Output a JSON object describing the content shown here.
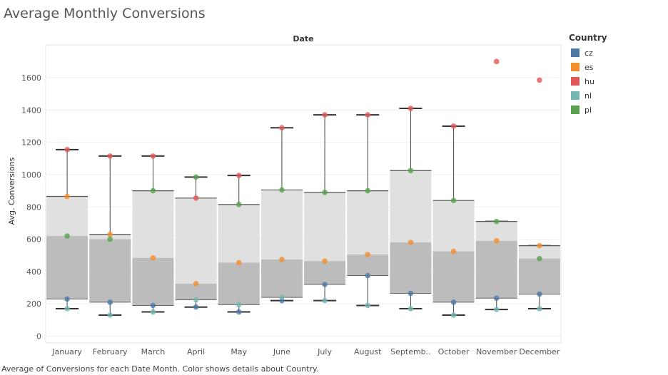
{
  "title": "Average Monthly Conversions",
  "caption": "Average of Conversions for each Date Month.  Color shows details about Country.",
  "legend": {
    "title": "Country",
    "items": [
      {
        "label": "cz",
        "color": "#4e79a7"
      },
      {
        "label": "es",
        "color": "#f28e2b"
      },
      {
        "label": "hu",
        "color": "#e15759"
      },
      {
        "label": "nl",
        "color": "#76b7b2"
      },
      {
        "label": "pl",
        "color": "#59a14f"
      }
    ]
  },
  "chart_data": {
    "type": "box",
    "title": "Average Monthly Conversions",
    "column_header": "Date",
    "ylabel": "Avg. Conversions",
    "ylim": [
      0,
      1800
    ],
    "yticks": [
      0,
      200,
      400,
      600,
      800,
      1000,
      1200,
      1400,
      1600
    ],
    "grid": true,
    "legend_position": "right",
    "categories": [
      "January",
      "February",
      "March",
      "April",
      "May",
      "June",
      "July",
      "August",
      "Septemb..",
      "October",
      "November",
      "December"
    ],
    "series": [
      {
        "name": "cz",
        "color": "#4e79a7",
        "values": [
          230,
          210,
          190,
          180,
          150,
          220,
          320,
          375,
          265,
          210,
          235,
          260
        ]
      },
      {
        "name": "es",
        "color": "#f28e2b",
        "values": [
          865,
          630,
          485,
          325,
          455,
          475,
          465,
          505,
          580,
          525,
          590,
          560
        ]
      },
      {
        "name": "hu",
        "color": "#e15759",
        "values": [
          1155,
          1115,
          1115,
          855,
          995,
          1290,
          1370,
          1370,
          1410,
          1300,
          1700,
          1585
        ]
      },
      {
        "name": "nl",
        "color": "#76b7b2",
        "values": [
          170,
          130,
          150,
          225,
          195,
          240,
          220,
          190,
          170,
          130,
          165,
          170
        ]
      },
      {
        "name": "pl",
        "color": "#59a14f",
        "values": [
          620,
          600,
          900,
          985,
          815,
          905,
          890,
          900,
          1025,
          840,
          710,
          480
        ]
      }
    ],
    "boxes": [
      {
        "low": 170,
        "q1": 230,
        "median": 620,
        "q3": 865,
        "high": 1155
      },
      {
        "low": 130,
        "q1": 210,
        "median": 600,
        "q3": 630,
        "high": 1115
      },
      {
        "low": 150,
        "q1": 190,
        "median": 485,
        "q3": 900,
        "high": 1115
      },
      {
        "low": 180,
        "q1": 225,
        "median": 325,
        "q3": 855,
        "high": 985
      },
      {
        "low": 150,
        "q1": 195,
        "median": 455,
        "q3": 815,
        "high": 995
      },
      {
        "low": 220,
        "q1": 240,
        "median": 475,
        "q3": 905,
        "high": 1290
      },
      {
        "low": 220,
        "q1": 320,
        "median": 465,
        "q3": 890,
        "high": 1370
      },
      {
        "low": 190,
        "q1": 375,
        "median": 505,
        "q3": 900,
        "high": 1370
      },
      {
        "low": 170,
        "q1": 265,
        "median": 580,
        "q3": 1025,
        "high": 1410
      },
      {
        "low": 130,
        "q1": 210,
        "median": 525,
        "q3": 840,
        "high": 1300
      },
      {
        "low": 165,
        "q1": 235,
        "median": 590,
        "q3": 710,
        "high": 710
      },
      {
        "low": 170,
        "q1": 260,
        "median": 480,
        "q3": 560,
        "high": 560
      }
    ]
  }
}
